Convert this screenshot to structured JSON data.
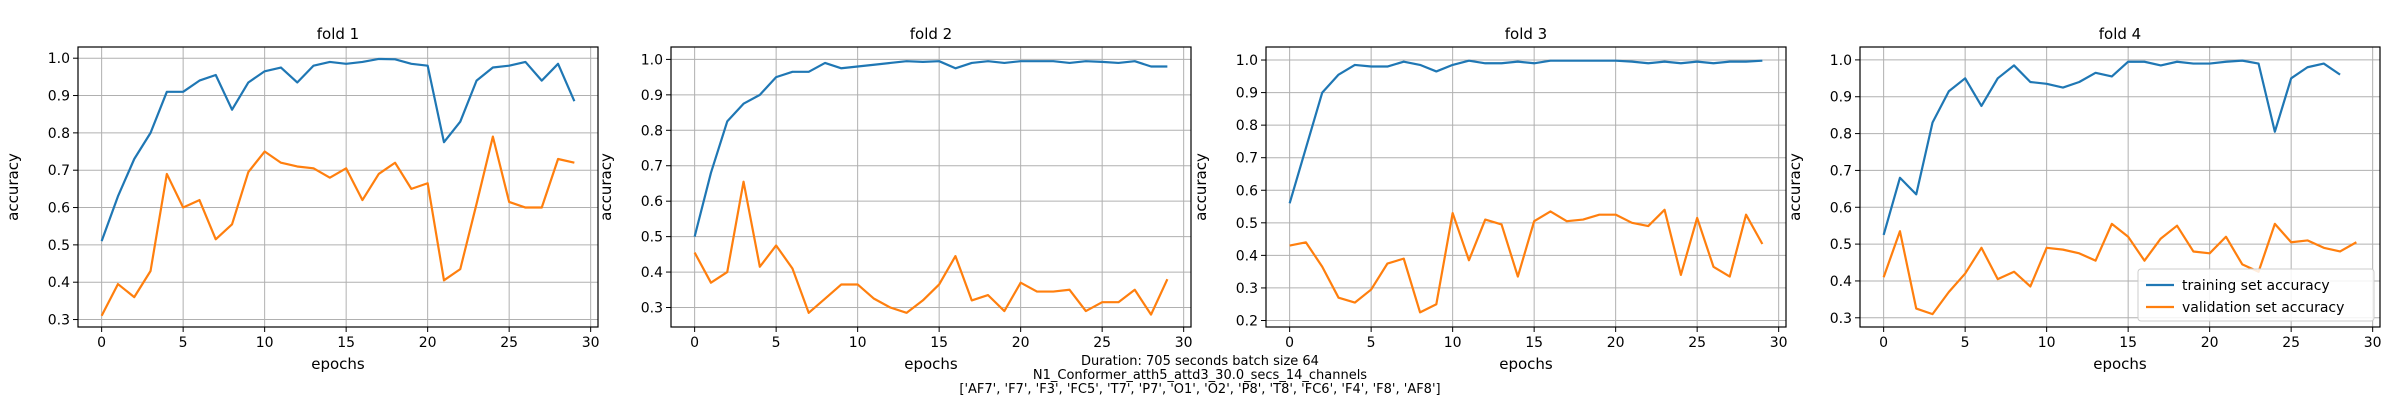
{
  "figure": {
    "caption_lines": [
      "Duration: 705 seconds batch size 64",
      "N1_Conformer_atth5_attd3_30.0_secs_14_channels",
      "['AF7', 'F7', 'F3', 'FC5', 'T7', 'P7', 'O1', 'O2', 'P8', 'T8', 'FC6', 'F4', 'F8', 'AF8']"
    ],
    "colors": {
      "training": "#1f77b4",
      "validation": "#ff7f0e",
      "grid": "#b0b0b0"
    }
  },
  "chart_data": [
    {
      "type": "line",
      "title": "fold 1",
      "xlabel": "epochs",
      "ylabel": "accuracy",
      "xlim": [
        -1.45,
        30.45
      ],
      "ylim": [
        0.28,
        1.03
      ],
      "xticks": [
        0,
        5,
        10,
        15,
        20,
        25,
        30
      ],
      "yticks": [
        0.3,
        0.4,
        0.5,
        0.6,
        0.7,
        0.8,
        0.9,
        1.0
      ],
      "grid": true,
      "x": [
        0,
        1,
        2,
        3,
        4,
        5,
        6,
        7,
        8,
        9,
        10,
        11,
        12,
        13,
        14,
        15,
        16,
        17,
        18,
        19,
        20,
        21,
        22,
        23,
        24,
        25,
        26,
        27,
        28,
        29
      ],
      "series": [
        {
          "name": "training set accuracy",
          "values": [
            0.51,
            0.63,
            0.73,
            0.8,
            0.91,
            0.91,
            0.94,
            0.955,
            0.862,
            0.935,
            0.965,
            0.975,
            0.935,
            0.98,
            0.99,
            0.985,
            0.99,
            0.998,
            0.997,
            0.985,
            0.98,
            0.775,
            0.83,
            0.94,
            0.975,
            0.98,
            0.99,
            0.94,
            0.985,
            0.885
          ]
        },
        {
          "name": "validation set accuracy",
          "values": [
            0.31,
            0.395,
            0.36,
            0.43,
            0.69,
            0.6,
            0.62,
            0.515,
            0.555,
            0.695,
            0.75,
            0.72,
            0.71,
            0.705,
            0.68,
            0.705,
            0.62,
            0.69,
            0.72,
            0.65,
            0.665,
            0.405,
            0.435,
            0.61,
            0.79,
            0.615,
            0.6,
            0.6,
            0.73,
            0.72
          ]
        }
      ]
    },
    {
      "type": "line",
      "title": "fold 2",
      "xlabel": "epochs",
      "ylabel": "accuracy",
      "xlim": [
        -1.45,
        30.45
      ],
      "ylim": [
        0.245,
        1.035
      ],
      "xticks": [
        0,
        5,
        10,
        15,
        20,
        25,
        30
      ],
      "yticks": [
        0.3,
        0.4,
        0.5,
        0.6,
        0.7,
        0.8,
        0.9,
        1.0
      ],
      "grid": true,
      "x": [
        0,
        1,
        2,
        3,
        4,
        5,
        6,
        7,
        8,
        9,
        10,
        11,
        12,
        13,
        14,
        15,
        16,
        17,
        18,
        19,
        20,
        21,
        22,
        23,
        24,
        25,
        26,
        27,
        28,
        29
      ],
      "series": [
        {
          "name": "training set accuracy",
          "values": [
            0.5,
            0.68,
            0.825,
            0.875,
            0.9,
            0.95,
            0.965,
            0.965,
            0.99,
            0.975,
            0.98,
            0.985,
            0.99,
            0.995,
            0.993,
            0.995,
            0.975,
            0.99,
            0.995,
            0.99,
            0.995,
            0.995,
            0.995,
            0.99,
            0.995,
            0.993,
            0.99,
            0.995,
            0.98,
            0.98
          ]
        },
        {
          "name": "validation set accuracy",
          "values": [
            0.455,
            0.37,
            0.4,
            0.655,
            0.415,
            0.475,
            0.41,
            0.285,
            0.325,
            0.365,
            0.365,
            0.325,
            0.3,
            0.285,
            0.32,
            0.365,
            0.445,
            0.32,
            0.335,
            0.29,
            0.37,
            0.345,
            0.345,
            0.35,
            0.29,
            0.315,
            0.315,
            0.35,
            0.28,
            0.38
          ]
        }
      ]
    },
    {
      "type": "line",
      "title": "fold 3",
      "xlabel": "epochs",
      "ylabel": "accuracy",
      "xlim": [
        -1.45,
        30.45
      ],
      "ylim": [
        0.18,
        1.04
      ],
      "xticks": [
        0,
        5,
        10,
        15,
        20,
        25,
        30
      ],
      "yticks": [
        0.2,
        0.3,
        0.4,
        0.5,
        0.6,
        0.7,
        0.8,
        0.9,
        1.0
      ],
      "grid": true,
      "x": [
        0,
        1,
        2,
        3,
        4,
        5,
        6,
        7,
        8,
        9,
        10,
        11,
        12,
        13,
        14,
        15,
        16,
        17,
        18,
        19,
        20,
        21,
        22,
        23,
        24,
        25,
        26,
        27,
        28,
        29
      ],
      "series": [
        {
          "name": "training set accuracy",
          "values": [
            0.56,
            0.73,
            0.9,
            0.955,
            0.985,
            0.98,
            0.98,
            0.995,
            0.985,
            0.965,
            0.985,
            0.998,
            0.99,
            0.99,
            0.995,
            0.99,
            0.998,
            0.998,
            0.998,
            0.998,
            0.998,
            0.995,
            0.99,
            0.995,
            0.99,
            0.995,
            0.99,
            0.995,
            0.995,
            0.998
          ]
        },
        {
          "name": "validation set accuracy",
          "values": [
            0.43,
            0.44,
            0.365,
            0.27,
            0.255,
            0.295,
            0.375,
            0.39,
            0.225,
            0.25,
            0.53,
            0.385,
            0.51,
            0.495,
            0.335,
            0.505,
            0.535,
            0.505,
            0.51,
            0.525,
            0.525,
            0.5,
            0.49,
            0.54,
            0.34,
            0.515,
            0.365,
            0.335,
            0.525,
            0.435
          ]
        }
      ]
    },
    {
      "type": "line",
      "title": "fold 4",
      "xlabel": "epochs",
      "ylabel": "accuracy",
      "xlim": [
        -1.45,
        30.45
      ],
      "ylim": [
        0.275,
        1.035
      ],
      "xticks": [
        0,
        5,
        10,
        15,
        20,
        25,
        30
      ],
      "yticks": [
        0.3,
        0.4,
        0.5,
        0.6,
        0.7,
        0.8,
        0.9,
        1.0
      ],
      "grid": true,
      "legend": "lower right",
      "x": [
        0,
        1,
        2,
        3,
        4,
        5,
        6,
        7,
        8,
        9,
        10,
        11,
        12,
        13,
        14,
        15,
        16,
        17,
        18,
        19,
        20,
        21,
        22,
        23,
        24,
        25,
        26,
        27,
        28,
        29
      ],
      "series": [
        {
          "name": "training set accuracy",
          "values": [
            0.525,
            0.68,
            0.635,
            0.83,
            0.915,
            0.95,
            0.875,
            0.95,
            0.985,
            0.94,
            0.935,
            0.925,
            0.94,
            0.965,
            0.955,
            0.995,
            0.995,
            0.985,
            0.995,
            0.99,
            0.99,
            0.995,
            0.998,
            0.99,
            0.805,
            0.95,
            0.98,
            0.99,
            0.96,
            null
          ]
        },
        {
          "name": "validation set accuracy",
          "values": [
            0.41,
            0.535,
            0.325,
            0.31,
            0.37,
            0.42,
            0.49,
            0.405,
            0.425,
            0.385,
            0.49,
            0.485,
            0.475,
            0.455,
            0.555,
            0.52,
            0.455,
            0.515,
            0.55,
            0.48,
            0.475,
            0.52,
            0.445,
            0.425,
            0.555,
            0.505,
            0.51,
            0.49,
            0.48,
            0.505
          ]
        }
      ]
    }
  ]
}
